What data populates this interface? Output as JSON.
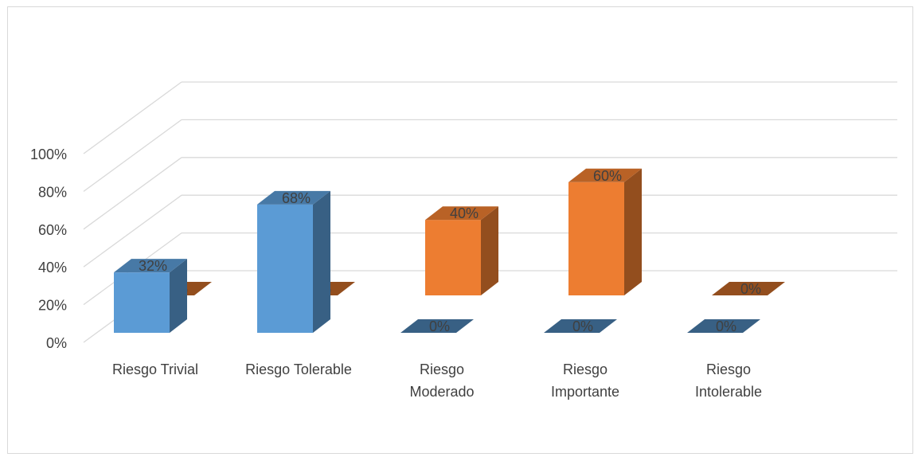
{
  "chart_data": {
    "type": "bar",
    "title": "",
    "xlabel": "",
    "ylabel": "",
    "ylim": [
      0,
      100
    ],
    "yticks": [
      "0%",
      "20%",
      "40%",
      "60%",
      "80%",
      "100%"
    ],
    "categories": [
      "Riesgo  Trivial",
      "Riesgo Tolerable",
      "Riesgo Moderado",
      "Riesgo Importante",
      "Riesgo Intolerable"
    ],
    "category_lines": [
      [
        "Riesgo  Trivial"
      ],
      [
        "Riesgo Tolerable"
      ],
      [
        "Riesgo",
        "Moderado"
      ],
      [
        "Riesgo",
        "Importante"
      ],
      [
        "Riesgo",
        "Intolerable"
      ]
    ],
    "series": [
      {
        "values": [
          32,
          68,
          0,
          0,
          0
        ],
        "labels": [
          "32%",
          "68%",
          "0%",
          "0%",
          "0%"
        ],
        "color": "#5b9bd5"
      },
      {
        "values": [
          0,
          0,
          40,
          60,
          0
        ],
        "labels": [
          "0%",
          "0%",
          "40%",
          "60%",
          "0%"
        ],
        "color": "#ed7d31"
      }
    ],
    "grid": true,
    "legend": "none",
    "three_d": true
  }
}
